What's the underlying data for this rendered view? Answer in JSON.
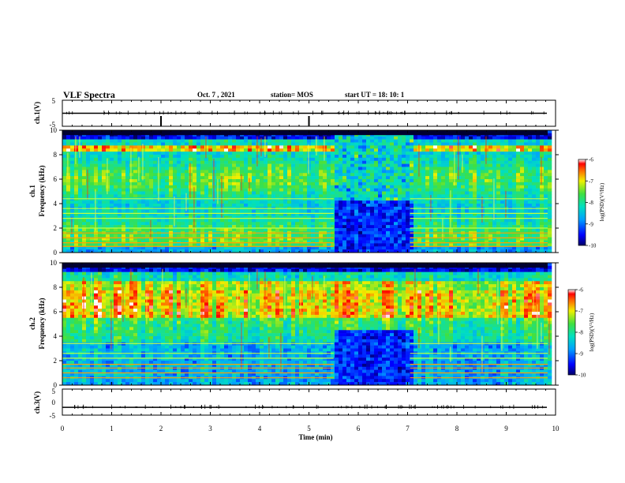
{
  "header": {
    "title": "VLF Spectra",
    "date": "Oct. 7  , 2021",
    "station": "station= MOS",
    "start_ut": "start  UT =   18: 10: 1"
  },
  "chart_data": [
    {
      "type": "line",
      "panel": "ch1-waveform",
      "ylabel": "ch.1(V)",
      "ylim": [
        -5,
        5
      ],
      "y_ticks": [
        "5",
        "-5"
      ],
      "x_range_min": [
        0,
        10
      ],
      "series": [
        {
          "values": [
            0,
            0
          ]
        }
      ]
    },
    {
      "type": "heatmap",
      "panel": "ch1-spectrogram",
      "ylabel": "ch.1\nFrequency (kHz)",
      "ylim": [
        0,
        10
      ],
      "y_ticks": [
        "0",
        "2",
        "4",
        "6",
        "8",
        "10"
      ],
      "x_range_min": [
        0,
        10
      ],
      "colorbar": {
        "label": "log(PSD)(V²/Hz)",
        "range": [
          -10,
          -6
        ],
        "ticks": [
          "-6",
          "-7",
          "-8",
          "-9",
          "-10"
        ]
      },
      "features": {
        "quiet_interval_min": [
          5.5,
          7.05
        ],
        "dense_band_khz": [
          0.5,
          9.2
        ],
        "intense_band_khz": [
          8.2,
          8.8
        ]
      }
    },
    {
      "type": "heatmap",
      "panel": "ch2-spectrogram",
      "ylabel": "ch.2\nFrequency (kHz)",
      "ylim": [
        0,
        10
      ],
      "y_ticks": [
        "0",
        "2",
        "4",
        "6",
        "8",
        "10"
      ],
      "x_range_min": [
        0,
        10
      ],
      "colorbar": {
        "label": "log(PSD)(V²/Hz)",
        "range": [
          -10,
          -6
        ],
        "ticks": [
          "-6",
          "-7",
          "-8",
          "-9",
          "-10"
        ]
      },
      "features": {
        "quiet_interval_min": [
          5.5,
          7.05
        ],
        "intense_band_khz": [
          5.6,
          7.8
        ]
      }
    },
    {
      "type": "line",
      "panel": "ch3-waveform",
      "ylabel": "ch.3(V)",
      "ylim": [
        -5,
        5
      ],
      "y_ticks": [
        "5",
        "0",
        "-5"
      ],
      "xlabel": "Time  (min)",
      "x_ticks": [
        "0",
        "1",
        "2",
        "3",
        "4",
        "5",
        "6",
        "7",
        "8",
        "9",
        "10"
      ],
      "x_range_min": [
        0,
        10
      ],
      "series": [
        {
          "values": [
            -2,
            -2
          ]
        }
      ]
    }
  ]
}
